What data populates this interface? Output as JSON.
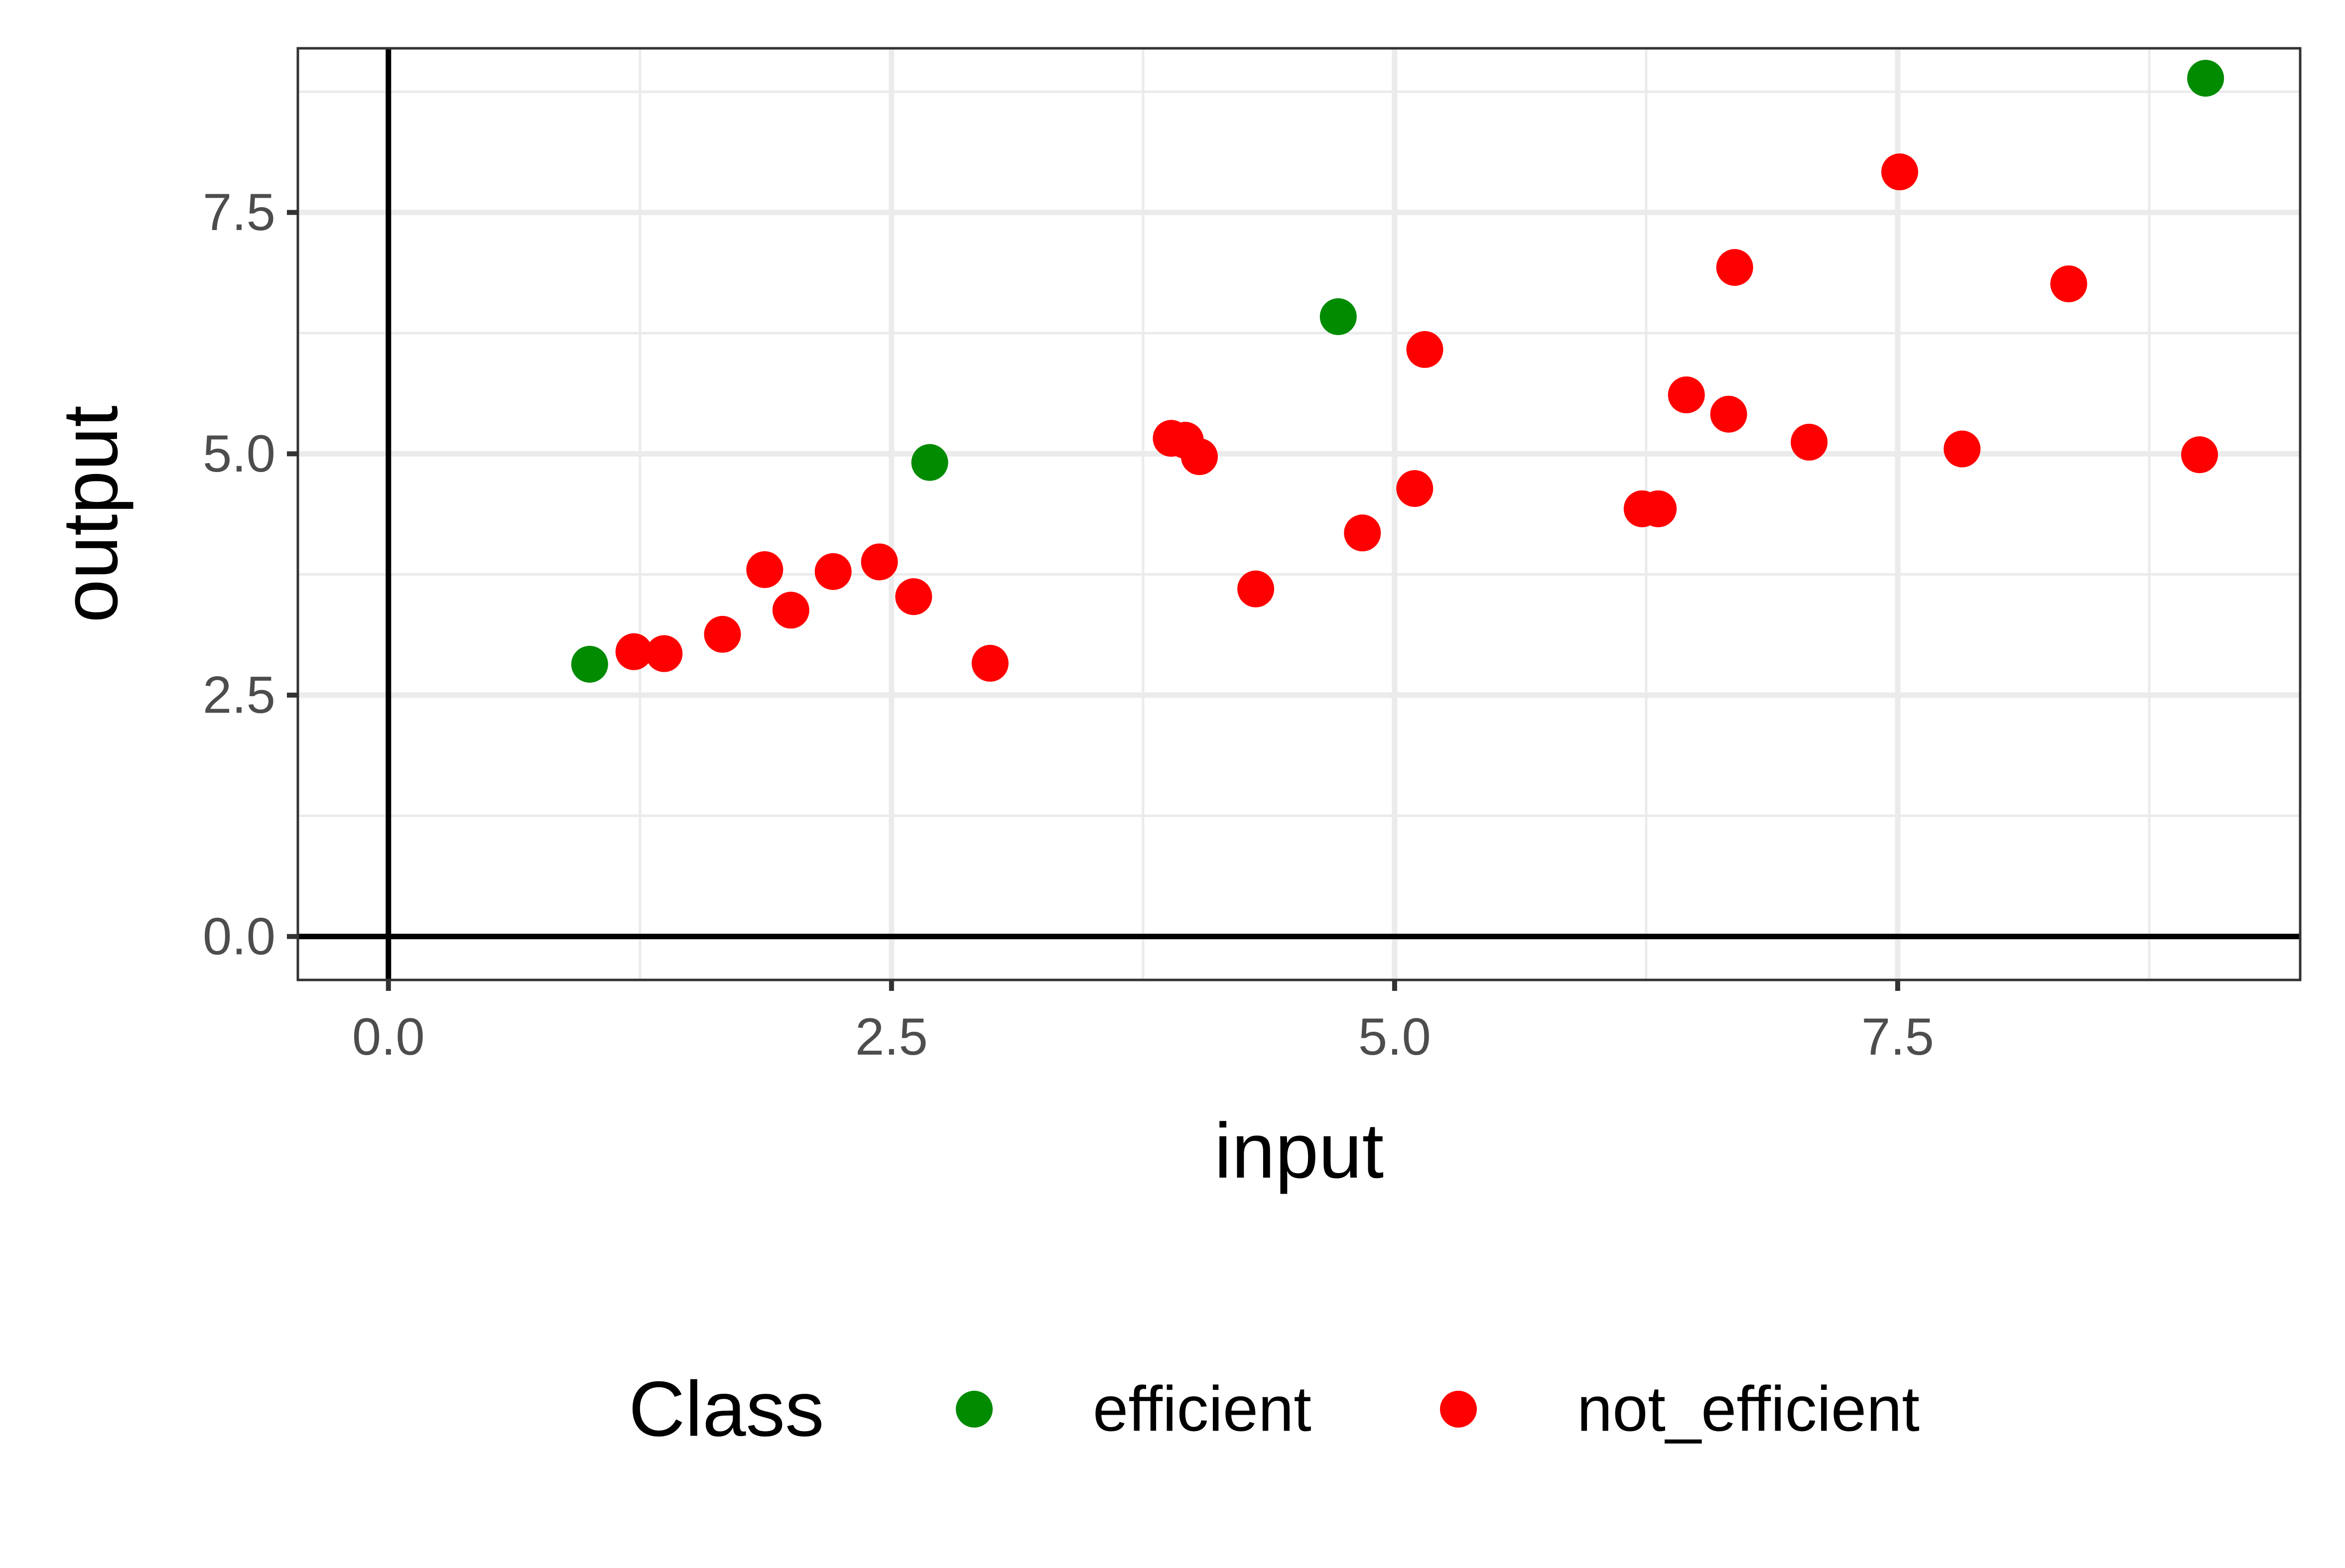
{
  "chart_data": {
    "type": "scatter",
    "xlabel": "input",
    "ylabel": "output",
    "xlim": [
      -0.45,
      9.5
    ],
    "ylim": [
      -0.45,
      9.2
    ],
    "x_ticks": [
      0.0,
      2.5,
      5.0,
      7.5
    ],
    "x_tick_labels": [
      "0.0",
      "2.5",
      "5.0",
      "7.5"
    ],
    "y_ticks": [
      0.0,
      2.5,
      5.0,
      7.5
    ],
    "y_tick_labels": [
      "0.0",
      "2.5",
      "5.0",
      "7.5"
    ],
    "grid": true,
    "reference_lines": {
      "x": 0,
      "y": 0
    },
    "legend": {
      "title": "Class",
      "position": "bottom",
      "entries": [
        {
          "label": "efficient",
          "color": "#008B00"
        },
        {
          "label": "not_efficient",
          "color": "#FF0000"
        }
      ]
    },
    "series": [
      {
        "name": "efficient",
        "color": "#008B00",
        "points": [
          {
            "x": 1.0,
            "y": 2.82
          },
          {
            "x": 2.69,
            "y": 4.91
          },
          {
            "x": 4.72,
            "y": 6.42
          },
          {
            "x": 9.03,
            "y": 8.89
          }
        ]
      },
      {
        "name": "not_efficient",
        "color": "#FF0000",
        "points": [
          {
            "x": 1.22,
            "y": 2.95
          },
          {
            "x": 1.37,
            "y": 2.93
          },
          {
            "x": 1.66,
            "y": 3.13
          },
          {
            "x": 1.87,
            "y": 3.8
          },
          {
            "x": 2.0,
            "y": 3.38
          },
          {
            "x": 2.21,
            "y": 3.78
          },
          {
            "x": 2.44,
            "y": 3.88
          },
          {
            "x": 2.61,
            "y": 3.52
          },
          {
            "x": 2.99,
            "y": 2.83
          },
          {
            "x": 3.89,
            "y": 5.16
          },
          {
            "x": 3.96,
            "y": 5.14
          },
          {
            "x": 4.03,
            "y": 4.97
          },
          {
            "x": 4.31,
            "y": 3.6
          },
          {
            "x": 4.84,
            "y": 4.18
          },
          {
            "x": 5.1,
            "y": 4.64
          },
          {
            "x": 5.15,
            "y": 6.08
          },
          {
            "x": 6.23,
            "y": 4.43
          },
          {
            "x": 6.31,
            "y": 4.43
          },
          {
            "x": 6.45,
            "y": 5.61
          },
          {
            "x": 6.66,
            "y": 5.41
          },
          {
            "x": 6.69,
            "y": 6.93
          },
          {
            "x": 7.06,
            "y": 5.12
          },
          {
            "x": 7.51,
            "y": 7.92
          },
          {
            "x": 7.82,
            "y": 5.05
          },
          {
            "x": 8.35,
            "y": 6.76
          },
          {
            "x": 9.0,
            "y": 4.99
          }
        ]
      }
    ]
  }
}
